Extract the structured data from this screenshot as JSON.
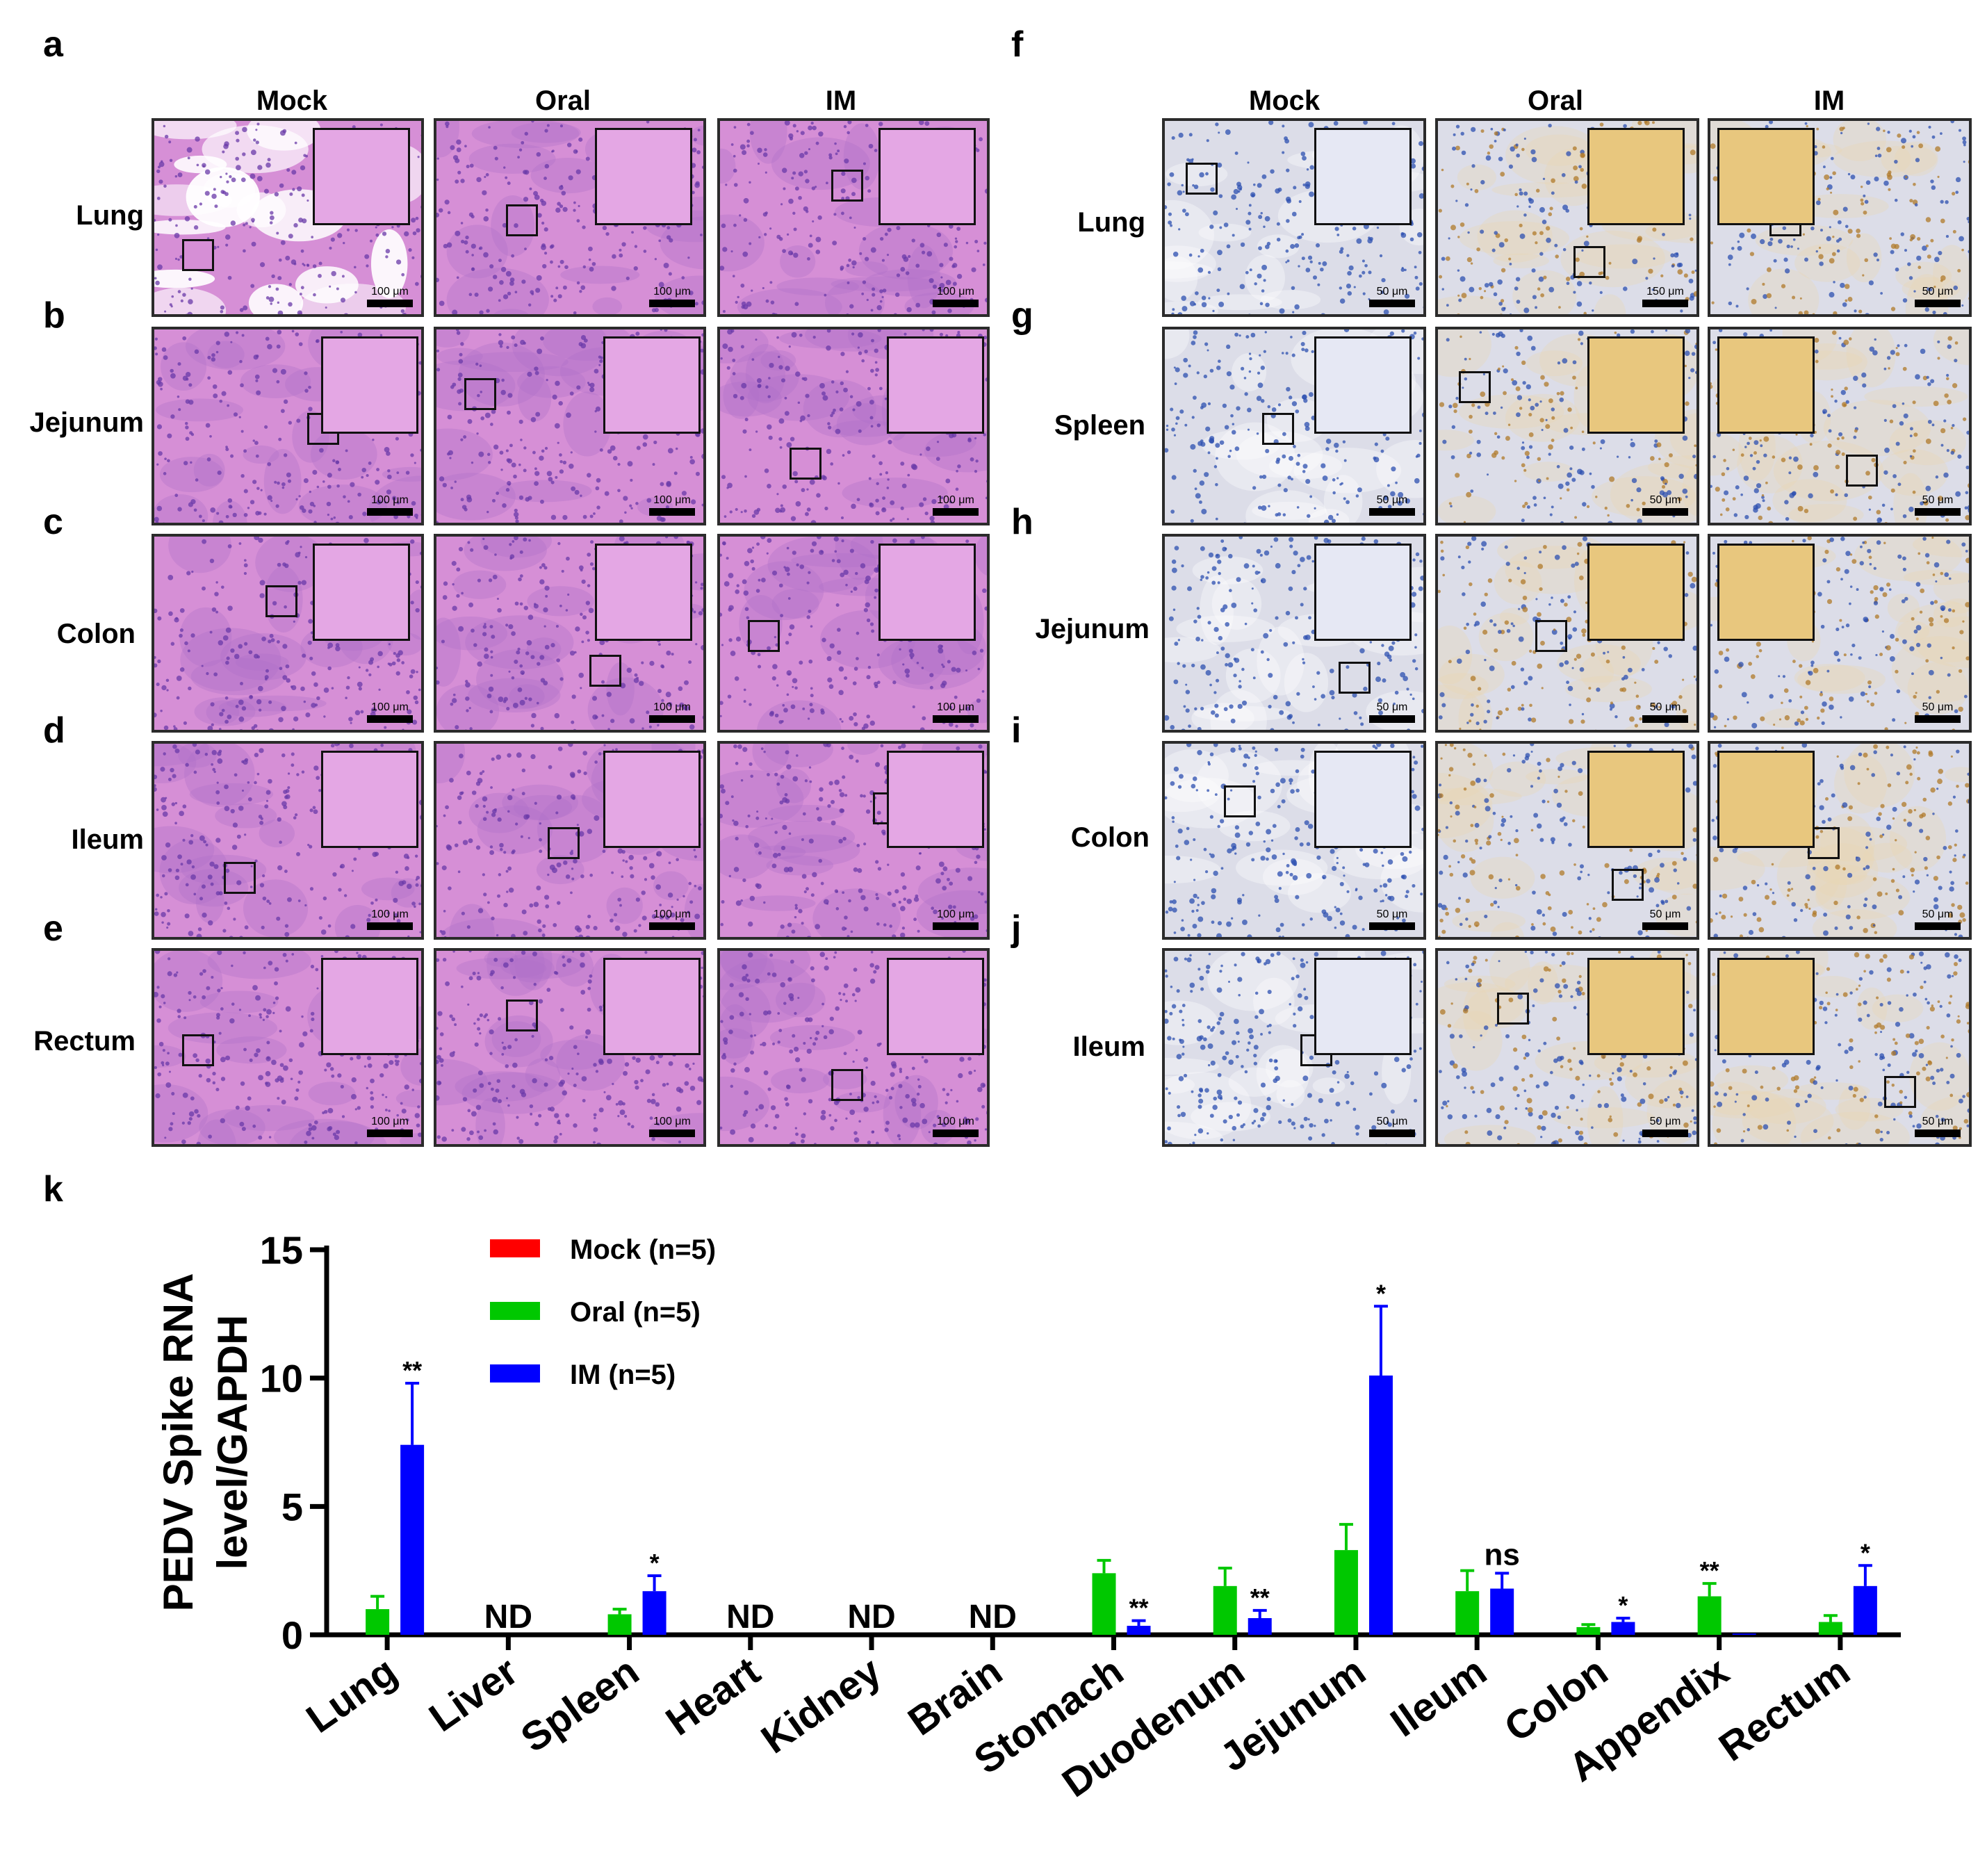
{
  "panel_letters": {
    "a": "a",
    "b": "b",
    "c": "c",
    "d": "d",
    "e": "e",
    "f": "f",
    "g": "g",
    "h": "h",
    "i": "i",
    "j": "j",
    "k": "k"
  },
  "he_panel": {
    "columns": [
      "Mock",
      "Oral",
      "IM"
    ],
    "rows": [
      "Lung",
      "Jejunum",
      "Colon",
      "Ileum",
      "Rectum"
    ],
    "scale_label": "100 μm",
    "stain_color": "#d68fd6",
    "nuclei_color": "#6a3aa8"
  },
  "ihc_panel": {
    "columns": [
      "Mock",
      "Oral",
      "IM"
    ],
    "rows": [
      "Lung",
      "Spleen",
      "Jejunum",
      "Colon",
      "Ileum"
    ],
    "scale_labels": [
      [
        "50 μm",
        "150 μm",
        "50 μm"
      ],
      [
        "50 μm",
        "50 μm",
        "50 μm"
      ],
      [
        "50 μm",
        "50 μm",
        "50 μm"
      ],
      [
        "50 μm",
        "50 μm",
        "50 μm"
      ],
      [
        "50 μm",
        "50 μm",
        "50 μm"
      ]
    ],
    "background_color": "#dcdde8",
    "nuclei_color": "#2c4fb0",
    "positive_color": "#b07a2a"
  },
  "chart_data": {
    "type": "bar",
    "title": "",
    "ylabel": "PEDV Spike RNA level/GAPDH",
    "ylabel_lines": [
      "PEDV Spike RNA",
      "level/GAPDH"
    ],
    "xlabel": "",
    "ylim": [
      0,
      15
    ],
    "yticks": [
      "0",
      "5",
      "10",
      "15"
    ],
    "categories": [
      "Lung",
      "Liver",
      "Spleen",
      "Heart",
      "Kidney",
      "Brain",
      "Stomach",
      "Duodenum",
      "Jejunum",
      "Ileum",
      "Colon",
      "Appendix",
      "Rectum"
    ],
    "series": [
      {
        "name": "Mock (n=5)",
        "color": "#ff0000",
        "values": [
          0,
          0,
          0,
          0,
          0,
          0,
          0,
          0,
          0,
          0,
          0,
          0,
          0
        ],
        "errors": [
          0,
          0,
          0,
          0,
          0,
          0,
          0,
          0,
          0,
          0,
          0,
          0,
          0
        ]
      },
      {
        "name": "Oral (n=5)",
        "color": "#00c800",
        "values": [
          1.0,
          0,
          0.8,
          0,
          0,
          0,
          2.4,
          1.9,
          3.3,
          1.7,
          0.3,
          1.5,
          0.5
        ],
        "errors": [
          0.5,
          0,
          0.2,
          0,
          0,
          0,
          0.5,
          0.7,
          1.0,
          0.8,
          0.1,
          0.5,
          0.25
        ]
      },
      {
        "name": "IM (n=5)",
        "color": "#0000ff",
        "values": [
          7.4,
          0,
          1.7,
          0,
          0,
          0,
          0.35,
          0.65,
          10.1,
          1.8,
          0.5,
          0.05,
          1.9
        ],
        "errors": [
          2.4,
          0,
          0.6,
          0,
          0,
          0,
          0.2,
          0.3,
          2.7,
          0.6,
          0.15,
          0,
          0.8
        ]
      }
    ],
    "nd_label": "ND",
    "nd_categories": [
      "Liver",
      "Heart",
      "Kidney",
      "Brain"
    ],
    "annotations": [
      {
        "category": "Lung",
        "series": "IM (n=5)",
        "text": "**"
      },
      {
        "category": "Spleen",
        "series": "IM (n=5)",
        "text": "*"
      },
      {
        "category": "Stomach",
        "series": "IM (n=5)",
        "text": "**"
      },
      {
        "category": "Duodenum",
        "series": "IM (n=5)",
        "text": "**"
      },
      {
        "category": "Jejunum",
        "series": "IM (n=5)",
        "text": "*"
      },
      {
        "category": "Ileum",
        "series": "IM (n=5)",
        "text": "ns"
      },
      {
        "category": "Colon",
        "series": "IM (n=5)",
        "text": "*"
      },
      {
        "category": "Appendix",
        "series": "Oral (n=5)",
        "text": "**"
      },
      {
        "category": "Rectum",
        "series": "IM (n=5)",
        "text": "*"
      }
    ],
    "legend": {
      "position": "top-left",
      "entries": [
        "Mock (n=5)",
        "Oral (n=5)",
        "IM (n=5)"
      ]
    }
  }
}
